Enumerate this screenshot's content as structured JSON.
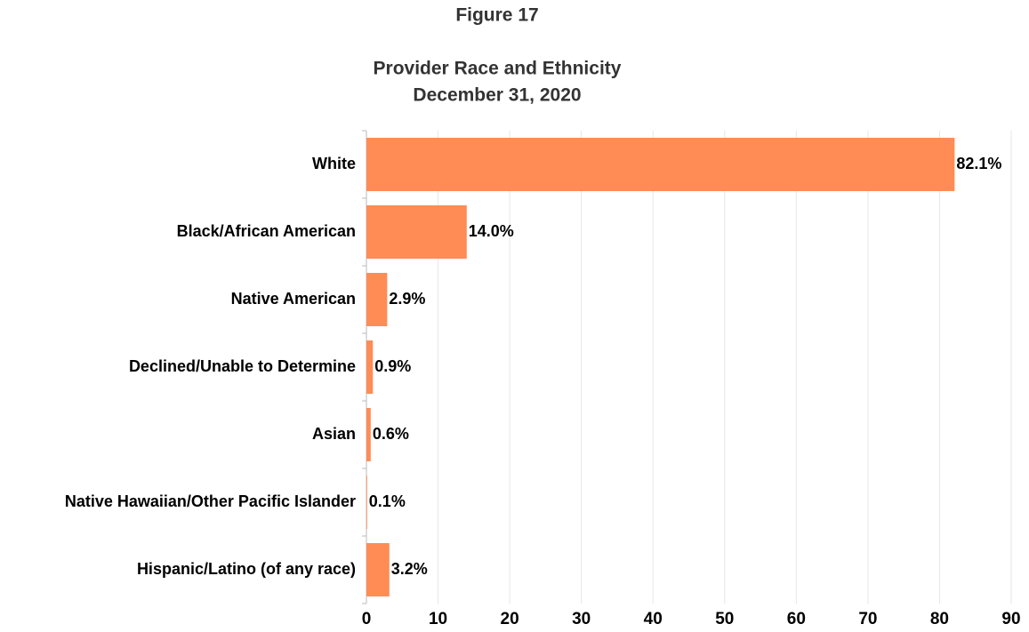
{
  "chart_data": {
    "type": "bar",
    "orientation": "horizontal",
    "title": "Figure 17",
    "subtitle": [
      "Provider Race and Ethnicity",
      "December 31, 2020"
    ],
    "categories": [
      "White",
      "Black/African American",
      "Native American",
      "Declined/Unable to Determine",
      "Asian",
      "Native Hawaiian/Other Pacific Islander",
      "Hispanic/Latino (of any race)"
    ],
    "values": [
      82.1,
      14.0,
      2.9,
      0.9,
      0.6,
      0.1,
      3.2
    ],
    "value_labels": [
      "82.1%",
      "14.0%",
      "2.9%",
      "0.9%",
      "0.6%",
      "0.1%",
      "3.2%"
    ],
    "color": "#ff8c55",
    "xlim": [
      0,
      90
    ],
    "xticks": [
      0,
      10,
      20,
      30,
      40,
      50,
      60,
      70,
      80,
      90
    ],
    "grid": true
  }
}
